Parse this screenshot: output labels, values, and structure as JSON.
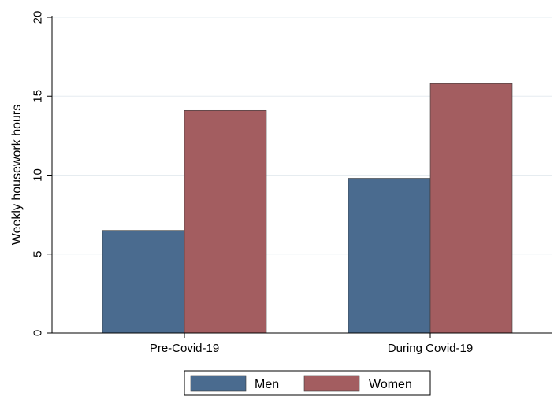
{
  "chart_data": {
    "type": "bar",
    "title": "",
    "xlabel": "",
    "ylabel": "Weekly housework hours",
    "categories": [
      "Pre-Covid-19",
      "During Covid-19"
    ],
    "series": [
      {
        "name": "Men",
        "values": [
          6.5,
          9.8
        ],
        "color": "#4a6b8f"
      },
      {
        "name": "Women",
        "values": [
          14.1,
          15.8
        ],
        "color": "#a35d60"
      }
    ],
    "ylim": [
      0,
      20
    ],
    "yticks": [
      0,
      5,
      10,
      15,
      20
    ],
    "ytick_labels": [
      "0",
      "5",
      "10",
      "15",
      "20"
    ],
    "grid": true,
    "grid_color": "#e6ecf0",
    "legend": {
      "position": "bottom-center",
      "entries": [
        "Men",
        "Women"
      ]
    }
  }
}
